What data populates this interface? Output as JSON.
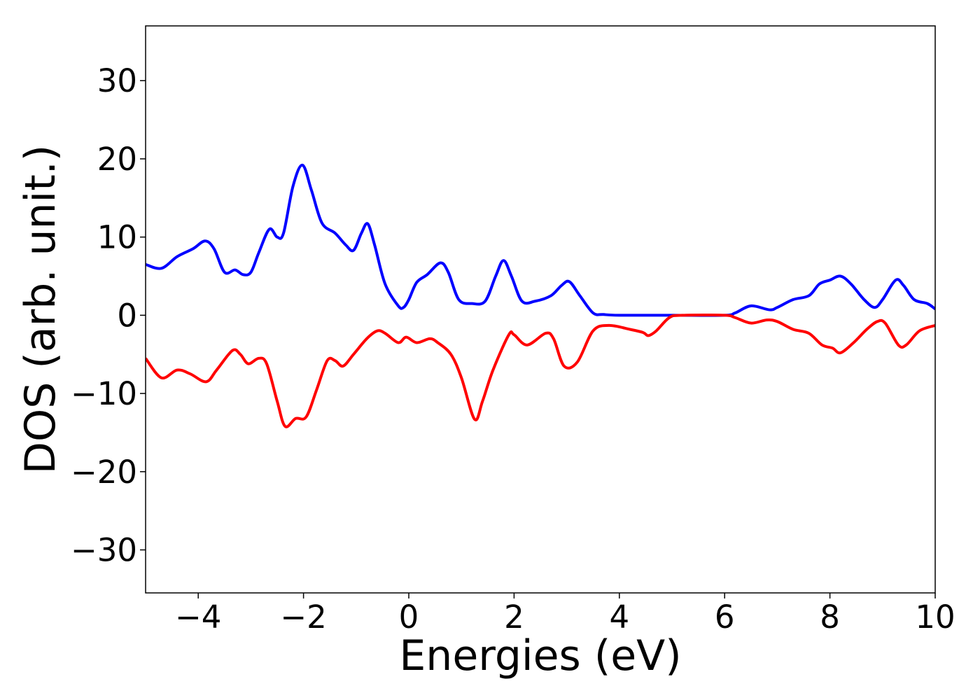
{
  "chart_data": {
    "type": "line",
    "title": "",
    "xlabel": "Energies (eV)",
    "ylabel": "DOS (arb. unit.)",
    "xlim": [
      -5,
      10
    ],
    "ylim": [
      -35.5,
      37
    ],
    "xticks": [
      -4,
      -2,
      0,
      2,
      4,
      6,
      8,
      10
    ],
    "yticks": [
      -30,
      -20,
      -10,
      0,
      10,
      20,
      30
    ],
    "xtick_labels": [
      "−4",
      "−2",
      "0",
      "2",
      "4",
      "6",
      "8",
      "10"
    ],
    "ytick_labels": [
      "−30",
      "−20",
      "−10",
      "0",
      "10",
      "20",
      "30"
    ],
    "grid": false,
    "legend": "none",
    "series": [
      {
        "color": "#0000ff",
        "points": [
          [
            -5.0,
            6.5
          ],
          [
            -4.7,
            6.0
          ],
          [
            -4.4,
            7.5
          ],
          [
            -4.1,
            8.5
          ],
          [
            -3.87,
            9.5
          ],
          [
            -3.7,
            8.5
          ],
          [
            -3.5,
            5.5
          ],
          [
            -3.3,
            5.8
          ],
          [
            -3.15,
            5.2
          ],
          [
            -3.0,
            5.5
          ],
          [
            -2.85,
            8.0
          ],
          [
            -2.65,
            11.0
          ],
          [
            -2.5,
            10.0
          ],
          [
            -2.38,
            10.5
          ],
          [
            -2.2,
            16.5
          ],
          [
            -2.02,
            19.2
          ],
          [
            -1.85,
            16.0
          ],
          [
            -1.65,
            11.8
          ],
          [
            -1.4,
            10.5
          ],
          [
            -1.2,
            9.0
          ],
          [
            -1.05,
            8.3
          ],
          [
            -0.9,
            10.5
          ],
          [
            -0.78,
            11.7
          ],
          [
            -0.65,
            9.0
          ],
          [
            -0.45,
            4.0
          ],
          [
            -0.2,
            1.2
          ],
          [
            -0.1,
            1.0
          ],
          [
            0.0,
            2.0
          ],
          [
            0.15,
            4.2
          ],
          [
            0.35,
            5.2
          ],
          [
            0.6,
            6.7
          ],
          [
            0.75,
            5.5
          ],
          [
            0.95,
            2.0
          ],
          [
            1.2,
            1.5
          ],
          [
            1.45,
            1.8
          ],
          [
            1.65,
            5.0
          ],
          [
            1.8,
            7.0
          ],
          [
            1.95,
            5.0
          ],
          [
            2.15,
            1.8
          ],
          [
            2.4,
            1.8
          ],
          [
            2.7,
            2.5
          ],
          [
            2.9,
            3.8
          ],
          [
            3.05,
            4.3
          ],
          [
            3.25,
            2.5
          ],
          [
            3.5,
            0.3
          ],
          [
            3.7,
            0.1
          ],
          [
            4.0,
            0.0
          ],
          [
            5.0,
            0.0
          ],
          [
            6.0,
            0.0
          ],
          [
            6.2,
            0.3
          ],
          [
            6.5,
            1.2
          ],
          [
            6.85,
            0.7
          ],
          [
            7.0,
            1.0
          ],
          [
            7.3,
            2.0
          ],
          [
            7.6,
            2.5
          ],
          [
            7.8,
            4.0
          ],
          [
            8.0,
            4.5
          ],
          [
            8.2,
            5.0
          ],
          [
            8.4,
            4.0
          ],
          [
            8.65,
            2.0
          ],
          [
            8.85,
            1.0
          ],
          [
            9.0,
            2.0
          ],
          [
            9.25,
            4.5
          ],
          [
            9.4,
            3.8
          ],
          [
            9.6,
            2.0
          ],
          [
            9.85,
            1.5
          ],
          [
            10.0,
            0.8
          ]
        ]
      },
      {
        "color": "#ff0000",
        "points": [
          [
            -5.0,
            -5.5
          ],
          [
            -4.7,
            -8.0
          ],
          [
            -4.4,
            -7.0
          ],
          [
            -4.15,
            -7.5
          ],
          [
            -3.85,
            -8.5
          ],
          [
            -3.65,
            -7.0
          ],
          [
            -3.35,
            -4.5
          ],
          [
            -3.2,
            -5.0
          ],
          [
            -3.05,
            -6.2
          ],
          [
            -2.85,
            -5.5
          ],
          [
            -2.7,
            -6.2
          ],
          [
            -2.5,
            -11.0
          ],
          [
            -2.35,
            -14.2
          ],
          [
            -2.15,
            -13.2
          ],
          [
            -1.95,
            -13.0
          ],
          [
            -1.75,
            -9.5
          ],
          [
            -1.55,
            -5.8
          ],
          [
            -1.4,
            -5.8
          ],
          [
            -1.25,
            -6.5
          ],
          [
            -1.05,
            -5.0
          ],
          [
            -0.8,
            -3.0
          ],
          [
            -0.6,
            -2.0
          ],
          [
            -0.45,
            -2.3
          ],
          [
            -0.2,
            -3.5
          ],
          [
            -0.05,
            -2.8
          ],
          [
            0.15,
            -3.5
          ],
          [
            0.4,
            -3.0
          ],
          [
            0.55,
            -3.5
          ],
          [
            0.8,
            -5.0
          ],
          [
            1.0,
            -8.0
          ],
          [
            1.25,
            -13.3
          ],
          [
            1.4,
            -11.0
          ],
          [
            1.6,
            -7.0
          ],
          [
            1.9,
            -2.5
          ],
          [
            2.0,
            -2.5
          ],
          [
            2.25,
            -3.8
          ],
          [
            2.6,
            -2.3
          ],
          [
            2.75,
            -3.0
          ],
          [
            2.95,
            -6.5
          ],
          [
            3.2,
            -6.0
          ],
          [
            3.5,
            -2.0
          ],
          [
            3.8,
            -1.3
          ],
          [
            4.2,
            -1.8
          ],
          [
            4.45,
            -2.2
          ],
          [
            4.55,
            -2.6
          ],
          [
            4.7,
            -2.0
          ],
          [
            4.95,
            -0.3
          ],
          [
            5.2,
            0.0
          ],
          [
            6.0,
            0.0
          ],
          [
            6.2,
            -0.3
          ],
          [
            6.5,
            -1.0
          ],
          [
            6.8,
            -0.6
          ],
          [
            7.0,
            -0.8
          ],
          [
            7.3,
            -1.8
          ],
          [
            7.6,
            -2.3
          ],
          [
            7.85,
            -3.8
          ],
          [
            8.05,
            -4.2
          ],
          [
            8.2,
            -4.8
          ],
          [
            8.45,
            -3.5
          ],
          [
            8.7,
            -1.8
          ],
          [
            8.9,
            -0.8
          ],
          [
            9.05,
            -1.0
          ],
          [
            9.3,
            -3.8
          ],
          [
            9.45,
            -3.8
          ],
          [
            9.7,
            -2.0
          ],
          [
            10.0,
            -1.3
          ]
        ]
      }
    ]
  }
}
